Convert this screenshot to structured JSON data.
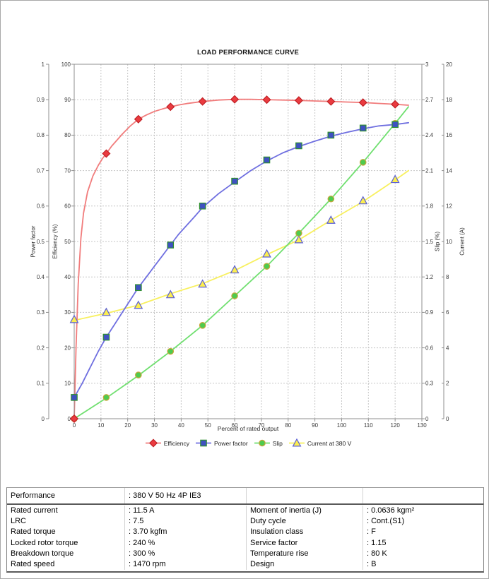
{
  "chart": {
    "title": "LOAD PERFORMANCE CURVE",
    "x_axis": {
      "label": "Percent of rated output",
      "min": 0,
      "max": 130,
      "tick_step": 10
    },
    "axes": {
      "power_factor": {
        "label": "Power factor",
        "min": 0,
        "max": 1,
        "tick_step": 0.1
      },
      "efficiency": {
        "label": "Efficiency (%)",
        "min": 0,
        "max": 100,
        "tick_step": 10
      },
      "slip": {
        "label": "Slip (%)",
        "min": 0,
        "max": 3,
        "tick_step": 0.3
      },
      "current": {
        "label": "Current (A)",
        "min": 0,
        "max": 20,
        "tick_step": 2
      }
    },
    "colors": {
      "grid": "#c6c6c6",
      "axis": "#8f8f8f",
      "tick_text": "#3a3a3a"
    }
  },
  "chart_data": {
    "type": "line",
    "title": "LOAD PERFORMANCE CURVE",
    "xlabel": "Percent of rated output",
    "xlim": [
      0,
      130
    ],
    "grid": true,
    "legend_position": "bottom",
    "x": [
      0,
      12,
      24,
      36,
      48,
      60,
      72,
      84,
      96,
      108,
      120
    ],
    "series": [
      {
        "name": "Current at 380 V",
        "axis": "Current (A)",
        "axis_max": 20,
        "marker": "triangle",
        "marker_fill": "#fcee4f",
        "marker_stroke": "#5a5fd6",
        "line_color": "#f8f05e",
        "values": [
          5.6,
          6.0,
          6.4,
          7.0,
          7.6,
          8.4,
          9.3,
          10.1,
          11.2,
          12.3,
          13.5
        ],
        "line_x": [
          0,
          12,
          24,
          36,
          48,
          60,
          72,
          84,
          96,
          108,
          120,
          125
        ],
        "line_y": [
          5.55,
          5.95,
          6.41,
          7.05,
          7.62,
          8.36,
          9.26,
          10.09,
          11.2,
          12.25,
          13.47,
          14.0
        ]
      },
      {
        "name": "Slip",
        "axis": "Slip (%)",
        "axis_max": 3,
        "marker": "circle",
        "marker_fill": "#4ecb4e",
        "marker_stroke": "#caa53a",
        "line_color": "#6fdf6f",
        "values": [
          0,
          0.18,
          0.37,
          0.57,
          0.79,
          1.04,
          1.29,
          1.57,
          1.86,
          2.17,
          2.5
        ],
        "line_x": [
          0,
          12,
          24,
          36,
          48,
          60,
          72,
          84,
          96,
          108,
          120,
          125
        ],
        "line_y": [
          0,
          0.175,
          0.365,
          0.57,
          0.79,
          1.04,
          1.29,
          1.57,
          1.86,
          2.17,
          2.5,
          2.64
        ]
      },
      {
        "name": "Power factor",
        "axis": "Power factor",
        "axis_max": 1,
        "marker": "square",
        "marker_fill": "#3f51c1",
        "marker_stroke": "#2f8f2f",
        "line_color": "#6f6fe0",
        "values": [
          0.06,
          0.23,
          0.37,
          0.49,
          0.6,
          0.67,
          0.73,
          0.77,
          0.8,
          0.82,
          0.83
        ],
        "line_x": [
          0,
          3,
          6,
          9,
          12,
          15,
          18,
          21,
          24,
          27,
          30,
          33,
          36,
          39,
          42,
          45,
          48,
          54,
          60,
          66,
          72,
          78,
          84,
          90,
          96,
          102,
          108,
          114,
          120,
          125
        ],
        "line_y": [
          0.06,
          0.1,
          0.145,
          0.19,
          0.23,
          0.265,
          0.3,
          0.335,
          0.37,
          0.4,
          0.43,
          0.46,
          0.49,
          0.52,
          0.545,
          0.57,
          0.596,
          0.635,
          0.668,
          0.7,
          0.727,
          0.75,
          0.768,
          0.783,
          0.797,
          0.808,
          0.818,
          0.826,
          0.83,
          0.835
        ]
      },
      {
        "name": "Efficiency",
        "axis": "Efficiency (%)",
        "axis_max": 100,
        "marker": "diamond",
        "marker_fill": "#ea3b40",
        "marker_stroke": "#c02025",
        "line_color": "#f17c7c",
        "values": [
          0,
          74.8,
          84.5,
          88.0,
          89.5,
          90.1,
          90.0,
          89.8,
          89.5,
          89.2,
          88.7
        ],
        "line_x": [
          0,
          0.7,
          1.5,
          2.5,
          3.5,
          5,
          7,
          9,
          10.5,
          12,
          14,
          16,
          18,
          21,
          24,
          27,
          30,
          33,
          36,
          39,
          42,
          45,
          48,
          54,
          60,
          66,
          72,
          78,
          84,
          90,
          96,
          102,
          108,
          114,
          120,
          125
        ],
        "line_y": [
          0,
          20,
          38,
          51,
          58,
          64,
          68.5,
          71.5,
          73.3,
          74.8,
          76.9,
          78.6,
          80.3,
          82.6,
          84.5,
          85.7,
          86.7,
          87.4,
          88.0,
          88.5,
          88.9,
          89.2,
          89.5,
          89.9,
          90.1,
          90.1,
          90.0,
          89.9,
          89.8,
          89.65,
          89.5,
          89.35,
          89.2,
          88.95,
          88.7,
          88.45
        ]
      }
    ],
    "legend_order": [
      "Efficiency",
      "Power factor",
      "Slip",
      "Current at 380 V"
    ]
  },
  "table": {
    "performance_label": "Performance",
    "performance_value": ": 380 V 50 Hz 4P IE3",
    "rows": [
      {
        "l_label": "Rated current",
        "l_value": ": 11.5 A",
        "r_label": "Moment of inertia (J)",
        "r_value": ": 0.0636 kgm²"
      },
      {
        "l_label": "LRC",
        "l_value": ": 7.5",
        "r_label": "Duty cycle",
        "r_value": ": Cont.(S1)"
      },
      {
        "l_label": "Rated torque",
        "l_value": ": 3.70 kgfm",
        "r_label": "Insulation class",
        "r_value": ": F"
      },
      {
        "l_label": "Locked rotor torque",
        "l_value": ": 240 %",
        "r_label": "Service factor",
        "r_value": ": 1.15"
      },
      {
        "l_label": "Breakdown torque",
        "l_value": ": 300 %",
        "r_label": "Temperature rise",
        "r_value": ": 80 K"
      },
      {
        "l_label": "Rated speed",
        "l_value": ": 1470 rpm",
        "r_label": "Design",
        "r_value": ": B"
      }
    ]
  }
}
